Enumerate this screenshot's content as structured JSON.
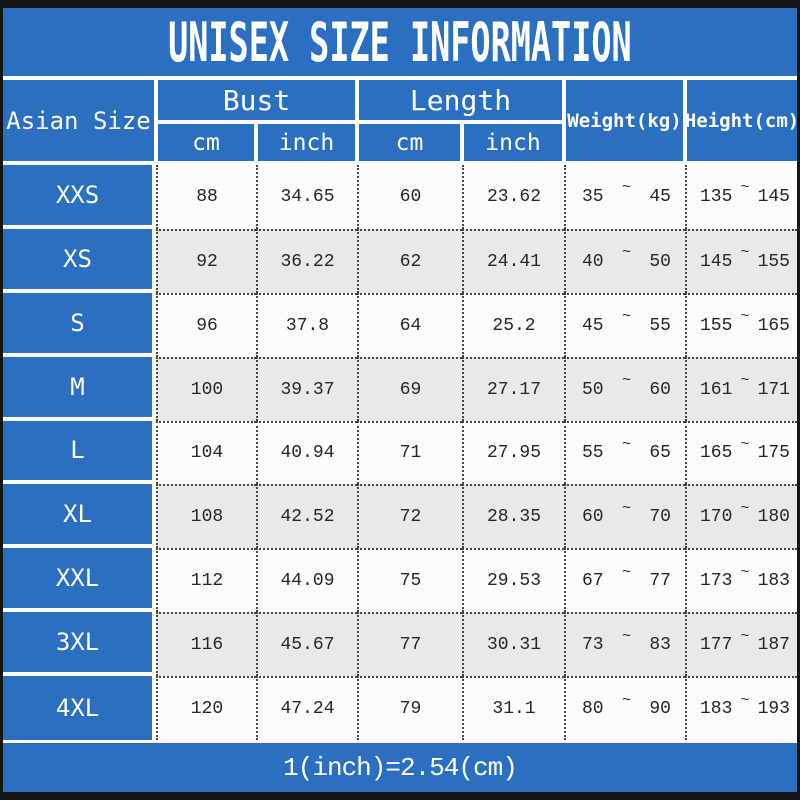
{
  "title": "UNISEX SIZE INFORMATION",
  "footer_note": "1(inch)=2.54(cm)",
  "colors": {
    "primary_blue": "#2b70c0",
    "frame_black": "#151515",
    "row_alt_gray": "#e9e9e9",
    "row_white": "#fcfcfc",
    "header_text": "#ffffff",
    "data_text": "#262626"
  },
  "table": {
    "corner_header": "Asian Size",
    "bust_header": "Bust",
    "length_header": "Length",
    "cm_label": "cm",
    "inch_label": "inch",
    "weight_header": "Weight(kg)",
    "height_header": "Height(cm)",
    "tilde": "~",
    "rows": [
      {
        "size": "XXS",
        "bust_cm": "88",
        "bust_inch": "34.65",
        "length_cm": "60",
        "length_inch": "23.62",
        "weight_min": "35",
        "weight_max": "45",
        "height_min": "135",
        "height_max": "145"
      },
      {
        "size": "XS",
        "bust_cm": "92",
        "bust_inch": "36.22",
        "length_cm": "62",
        "length_inch": "24.41",
        "weight_min": "40",
        "weight_max": "50",
        "height_min": "145",
        "height_max": "155"
      },
      {
        "size": "S",
        "bust_cm": "96",
        "bust_inch": "37.8",
        "length_cm": "64",
        "length_inch": "25.2",
        "weight_min": "45",
        "weight_max": "55",
        "height_min": "155",
        "height_max": "165"
      },
      {
        "size": "M",
        "bust_cm": "100",
        "bust_inch": "39.37",
        "length_cm": "69",
        "length_inch": "27.17",
        "weight_min": "50",
        "weight_max": "60",
        "height_min": "161",
        "height_max": "171"
      },
      {
        "size": "L",
        "bust_cm": "104",
        "bust_inch": "40.94",
        "length_cm": "71",
        "length_inch": "27.95",
        "weight_min": "55",
        "weight_max": "65",
        "height_min": "165",
        "height_max": "175"
      },
      {
        "size": "XL",
        "bust_cm": "108",
        "bust_inch": "42.52",
        "length_cm": "72",
        "length_inch": "28.35",
        "weight_min": "60",
        "weight_max": "70",
        "height_min": "170",
        "height_max": "180"
      },
      {
        "size": "XXL",
        "bust_cm": "112",
        "bust_inch": "44.09",
        "length_cm": "75",
        "length_inch": "29.53",
        "weight_min": "67",
        "weight_max": "77",
        "height_min": "173",
        "height_max": "183"
      },
      {
        "size": "3XL",
        "bust_cm": "116",
        "bust_inch": "45.67",
        "length_cm": "77",
        "length_inch": "30.31",
        "weight_min": "73",
        "weight_max": "83",
        "height_min": "177",
        "height_max": "187"
      },
      {
        "size": "4XL",
        "bust_cm": "120",
        "bust_inch": "47.24",
        "length_cm": "79",
        "length_inch": "31.1",
        "weight_min": "80",
        "weight_max": "90",
        "height_min": "183",
        "height_max": "193"
      }
    ]
  },
  "chart_data": {
    "type": "table",
    "title": "UNISEX SIZE INFORMATION",
    "note": "1(inch)=2.54(cm)",
    "column_groups": [
      {
        "label": "Bust",
        "sub": [
          "cm",
          "inch"
        ]
      },
      {
        "label": "Length",
        "sub": [
          "cm",
          "inch"
        ]
      }
    ],
    "columns": [
      "Asian Size",
      "Bust cm",
      "Bust inch",
      "Length cm",
      "Length inch",
      "Weight(kg)",
      "Height(cm)"
    ],
    "rows": [
      [
        "XXS",
        88,
        34.65,
        60,
        23.62,
        "35~45",
        "135~145"
      ],
      [
        "XS",
        92,
        36.22,
        62,
        24.41,
        "40~50",
        "145~155"
      ],
      [
        "S",
        96,
        37.8,
        64,
        25.2,
        "45~55",
        "155~165"
      ],
      [
        "M",
        100,
        39.37,
        69,
        27.17,
        "50~60",
        "161~171"
      ],
      [
        "L",
        104,
        40.94,
        71,
        27.95,
        "55~65",
        "165~175"
      ],
      [
        "XL",
        108,
        42.52,
        72,
        28.35,
        "60~70",
        "170~180"
      ],
      [
        "XXL",
        112,
        44.09,
        75,
        29.53,
        "67~77",
        "173~183"
      ],
      [
        "3XL",
        116,
        45.67,
        77,
        30.31,
        "73~83",
        "177~187"
      ],
      [
        "4XL",
        120,
        47.24,
        79,
        31.1,
        "80~90",
        "183~193"
      ]
    ]
  }
}
